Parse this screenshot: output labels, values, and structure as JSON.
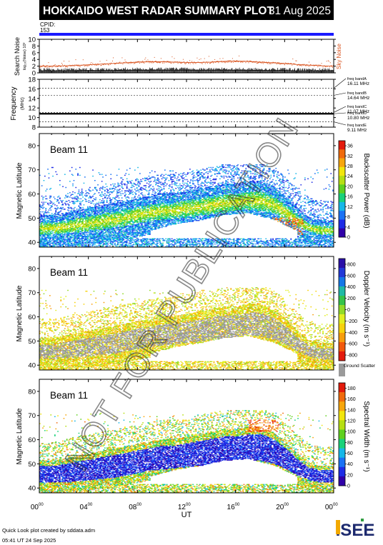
{
  "header": {
    "title": "HOKKAIDO WEST RADAR SUMMARY PLOT",
    "date": "31 Aug 2025",
    "cpid_label": "CPID:",
    "cpid_value": "153"
  },
  "colors": {
    "header_bg": "#000000",
    "cpid_bar": "#1a1aff",
    "sky_noise": "#d9531e",
    "ground_scatter": "#9a9a9a"
  },
  "footer": {
    "line1": "Quick Look plot created by sddata.adm",
    "line2": "05:41 UT 24 Sep 2025",
    "logo_text": "ISEE"
  },
  "watermark": "NOT FOR PUBLICATION",
  "chart_data": [
    {
      "type": "line",
      "name": "noise",
      "ylabel": "Search Noise",
      "ylabel2": "log₁₀(Noise) 10³",
      "series_label": "Sky Noise",
      "ylim": [
        0,
        10
      ],
      "yticks": [
        "0",
        "2",
        "4",
        "6",
        "8",
        "10"
      ],
      "x": [
        0,
        1,
        2,
        3,
        4,
        5,
        6,
        7,
        8,
        9,
        10,
        11,
        12,
        13,
        14,
        15,
        16,
        17,
        18,
        19,
        20,
        21,
        22,
        23,
        24
      ],
      "search_noise": [
        0.6,
        0.6,
        0.6,
        0.6,
        0.7,
        0.7,
        0.7,
        0.8,
        0.8,
        0.8,
        0.8,
        0.8,
        0.8,
        0.8,
        0.8,
        0.8,
        0.8,
        0.8,
        0.7,
        0.7,
        0.7,
        0.6,
        0.6,
        0.6,
        0.6
      ],
      "sky_noise": [
        2.0,
        2.0,
        2.1,
        2.2,
        2.4,
        2.6,
        2.8,
        3.0,
        3.2,
        3.3,
        3.3,
        3.2,
        3.1,
        3.1,
        3.2,
        3.4,
        3.5,
        3.4,
        3.2,
        3.0,
        2.8,
        2.5,
        2.3,
        2.1,
        2.0
      ]
    },
    {
      "type": "line",
      "name": "frequency",
      "ylabel": "Frequency",
      "yunit": "(MHz)",
      "ylim": [
        8,
        18
      ],
      "yticks": [
        "8",
        "10",
        "12",
        "14",
        "16",
        "18"
      ],
      "bands": [
        {
          "label": "freq bandA",
          "value": "16.11 MHz",
          "mhz": 16.11
        },
        {
          "label": "freq bandB",
          "value": "14.64 MHz",
          "mhz": 14.64
        },
        {
          "label": "freq bandC",
          "value": "11.07 MHz",
          "mhz": 11.07
        },
        {
          "label": "freq bandD",
          "value": "10.80 MHz",
          "mhz": 10.8
        },
        {
          "label": "freq bandE",
          "value": "9.11 MHz",
          "mhz": 9.11
        }
      ],
      "observed_mhz": 10.8
    },
    {
      "type": "heatmap",
      "name": "power",
      "beam_label": "Beam 11",
      "ylabel": "Magnetic Latitude",
      "ylim": [
        38,
        85
      ],
      "yticks": [
        "40",
        "50",
        "60",
        "70",
        "80"
      ],
      "colorbar_label": "Backscatter Power (dB)",
      "colorbar_ticks": [
        "0",
        "4",
        "8",
        "12",
        "16",
        "20",
        "24",
        "28",
        "32",
        "36"
      ],
      "colorbar_range": [
        0,
        38
      ]
    },
    {
      "type": "heatmap",
      "name": "velocity",
      "beam_label": "Beam 11",
      "ylabel": "Magnetic Latitude",
      "ylim": [
        38,
        85
      ],
      "yticks": [
        "40",
        "50",
        "60",
        "70",
        "80"
      ],
      "colorbar_label": "Doppler Velocity (m s⁻¹)",
      "colorbar_ticks": [
        "-800",
        "-600",
        "-400",
        "-200",
        "0",
        "200",
        "400",
        "600",
        "800"
      ],
      "colorbar_range": [
        -900,
        900
      ],
      "ground_scatter_label": "Ground Scatter"
    },
    {
      "type": "heatmap",
      "name": "width",
      "beam_label": "Beam 11",
      "ylabel": "Magnetic Latitude",
      "ylim": [
        38,
        85
      ],
      "yticks": [
        "40",
        "50",
        "60",
        "70",
        "80"
      ],
      "colorbar_label": "Spectral Width (m s⁻¹)",
      "colorbar_ticks": [
        "0",
        "20",
        "40",
        "60",
        "80",
        "100",
        "120",
        "140",
        "160",
        "180"
      ],
      "colorbar_range": [
        0,
        190
      ],
      "xlabel": "UT",
      "xlim": [
        0,
        24
      ],
      "xticks": [
        {
          "h": "00",
          "m": "00"
        },
        {
          "h": "04",
          "m": "00"
        },
        {
          "h": "08",
          "m": "00"
        },
        {
          "h": "12",
          "m": "00"
        },
        {
          "h": "16",
          "m": "00"
        },
        {
          "h": "20",
          "m": "00"
        },
        {
          "h": "00",
          "m": "00"
        }
      ]
    }
  ],
  "echo_region": {
    "ut": [
      0,
      1,
      2,
      3,
      4,
      5,
      6,
      7,
      8,
      9,
      10,
      11,
      12,
      13,
      14,
      15,
      16,
      17,
      18,
      19,
      20,
      21,
      22,
      23,
      24
    ],
    "lower_edge_mlat": [
      42,
      42,
      42,
      42.5,
      43,
      43.5,
      44,
      45,
      46,
      47,
      47.5,
      48,
      48.5,
      49,
      49.5,
      50,
      51,
      51.5,
      51,
      50,
      48,
      45,
      43,
      42,
      42
    ],
    "upper_edge_mlat": [
      50,
      50,
      51,
      52,
      53,
      54,
      55,
      56,
      57,
      58,
      59,
      59,
      60,
      61,
      62,
      63,
      63,
      64,
      64,
      62,
      58,
      53,
      49,
      48,
      48
    ],
    "gap_center_mlat": [
      39,
      39,
      39,
      39,
      39,
      39,
      39,
      40,
      41,
      42,
      43,
      44,
      44.5,
      45,
      46,
      47,
      47.5,
      48,
      47,
      46,
      44,
      42,
      40,
      39,
      39
    ]
  }
}
